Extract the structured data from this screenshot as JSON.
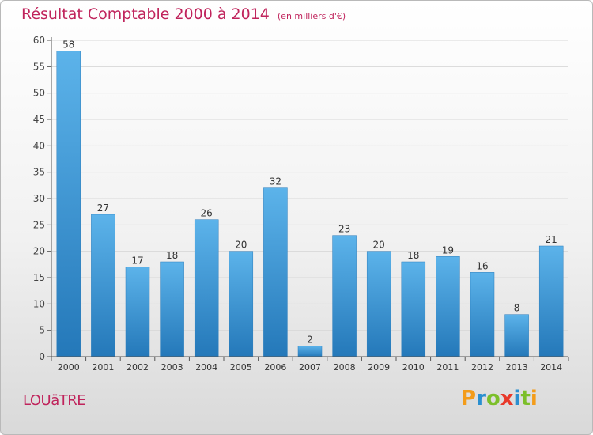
{
  "title": "Résultat Comptable 2000 à 2014",
  "unit": "(en milliers d'€)",
  "town": "LOUäTRE",
  "logo": "Proxiti",
  "colors": {
    "bar_light": "#5cb3ea",
    "bar_dark": "#2478b9",
    "title": "#c0245c"
  },
  "chart_data": {
    "type": "bar",
    "title": "Résultat Comptable 2000 à 2014",
    "subtitle": "(en milliers d'€)",
    "xlabel": "",
    "ylabel": "",
    "categories": [
      "2000",
      "2001",
      "2002",
      "2003",
      "2004",
      "2005",
      "2006",
      "2007",
      "2008",
      "2009",
      "2010",
      "2011",
      "2012",
      "2013",
      "2014"
    ],
    "values": [
      58,
      27,
      17,
      18,
      26,
      20,
      32,
      2,
      23,
      20,
      18,
      19,
      16,
      8,
      21
    ],
    "ylim": [
      0,
      60
    ],
    "yticks": [
      0,
      5,
      10,
      15,
      20,
      25,
      30,
      35,
      40,
      45,
      50,
      55,
      60
    ],
    "grid": true
  }
}
